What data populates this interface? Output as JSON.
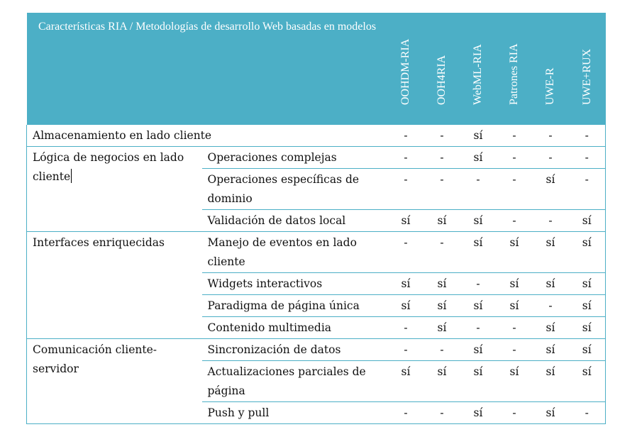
{
  "table": {
    "header": {
      "title": "Características RIA / Metodologías de desarrollo Web basadas en modelos",
      "methods": [
        "OOHDM-RIA",
        "OOH4RIA",
        "WebML-RIA",
        "Patrones RIA",
        "UWE-R",
        "UWE+RUX"
      ]
    },
    "groups": [
      {
        "category": "Almacenamiento en lado cliente",
        "rows": [
          {
            "feature": "",
            "values": [
              "-",
              "-",
              "sí",
              "-",
              "-",
              "-"
            ]
          }
        ]
      },
      {
        "category": "Lógica de negocios en lado cliente",
        "rows": [
          {
            "feature": "Operaciones complejas",
            "values": [
              "-",
              "-",
              "sí",
              "-",
              "-",
              "-"
            ]
          },
          {
            "feature": "Operaciones específicas de dominio",
            "values": [
              "-",
              "-",
              "-",
              "-",
              "sí",
              "-"
            ]
          },
          {
            "feature": "Validación de datos local",
            "values": [
              "sí",
              "sí",
              "sí",
              "-",
              "-",
              "sí"
            ]
          }
        ]
      },
      {
        "category": "Interfaces enriquecidas",
        "rows": [
          {
            "feature": "Manejo de eventos en lado cliente",
            "values": [
              "-",
              "-",
              "sí",
              "sí",
              "sí",
              "sí"
            ]
          },
          {
            "feature": "Widgets interactivos",
            "values": [
              "sí",
              "sí",
              "-",
              "sí",
              "sí",
              "sí"
            ]
          },
          {
            "feature": "Paradigma de página única",
            "values": [
              "sí",
              "sí",
              "sí",
              "sí",
              "-",
              "sí"
            ]
          },
          {
            "feature": "Contenido multimedia",
            "values": [
              "-",
              "sí",
              "-",
              "-",
              "sí",
              "sí"
            ]
          }
        ]
      },
      {
        "category": "Comunicación cliente-servidor",
        "rows": [
          {
            "feature": "Sincronización de datos",
            "values": [
              "-",
              "-",
              "sí",
              "-",
              "sí",
              "sí"
            ]
          },
          {
            "feature": "Actualizaciones parciales de página",
            "values": [
              "sí",
              "sí",
              "sí",
              "sí",
              "sí",
              "sí"
            ]
          },
          {
            "feature": "Push y pull",
            "values": [
              "-",
              "-",
              "sí",
              "-",
              "sí",
              "-"
            ]
          }
        ]
      }
    ]
  }
}
